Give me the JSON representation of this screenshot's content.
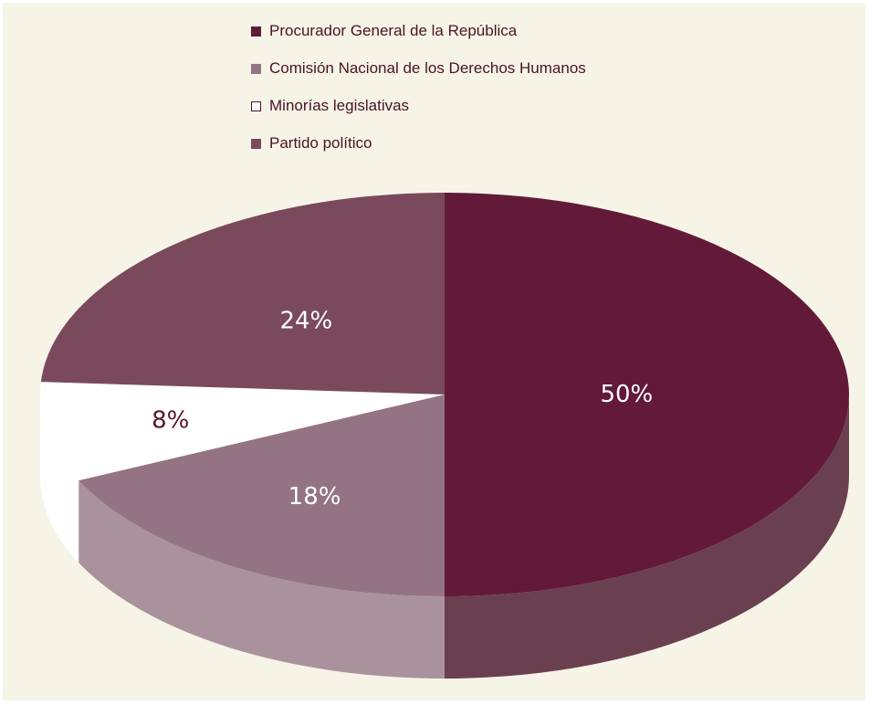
{
  "chart_data": {
    "type": "pie",
    "title": "",
    "labels": [
      "Procurador General de la República",
      "Comisión Nacional de los Derechos Humanos",
      "Minorías legislativas",
      "Partido político"
    ],
    "values": [
      50,
      18,
      8,
      24
    ],
    "value_labels": [
      "50%",
      "18%",
      "8%",
      "24%"
    ],
    "colors": [
      "#621a38",
      "#947482",
      "#ffffff",
      "#7a4a5c"
    ],
    "side_colors": [
      "#6a4050",
      "#aa929c",
      "#ffffff",
      "#6a4050"
    ],
    "label_colors": [
      "#ffffff",
      "#ffffff",
      "#5a1530",
      "#ffffff"
    ],
    "start_angle_deg": -90,
    "direction": "clockwise",
    "style": "3d",
    "legend_position": "top",
    "legend_marker_color_minorias_border": "#4a1228"
  }
}
